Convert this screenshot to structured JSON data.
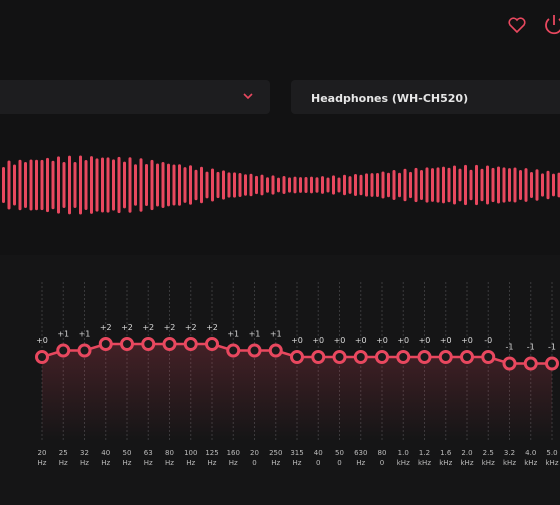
{
  "device_selector": {
    "label": "Headphones (WH-CH520)"
  },
  "equalizer": {
    "bands": [
      {
        "gain": 0,
        "gain_label": "+0",
        "freq": "20",
        "unit": "Hz"
      },
      {
        "gain": 1,
        "gain_label": "+1",
        "freq": "25",
        "unit": "Hz"
      },
      {
        "gain": 1,
        "gain_label": "+1",
        "freq": "32",
        "unit": "Hz"
      },
      {
        "gain": 2,
        "gain_label": "+2",
        "freq": "40",
        "unit": "Hz"
      },
      {
        "gain": 2,
        "gain_label": "+2",
        "freq": "50",
        "unit": "Hz"
      },
      {
        "gain": 2,
        "gain_label": "+2",
        "freq": "63",
        "unit": "Hz"
      },
      {
        "gain": 2,
        "gain_label": "+2",
        "freq": "80",
        "unit": "Hz"
      },
      {
        "gain": 2,
        "gain_label": "+2",
        "freq": "100",
        "unit": "Hz"
      },
      {
        "gain": 2,
        "gain_label": "+2",
        "freq": "125",
        "unit": "Hz"
      },
      {
        "gain": 1,
        "gain_label": "+1",
        "freq": "160",
        "unit": "Hz"
      },
      {
        "gain": 1,
        "gain_label": "+1",
        "freq": "20",
        "unit": "0"
      },
      {
        "gain": 1,
        "gain_label": "+1",
        "freq": "250",
        "unit": "Hz"
      },
      {
        "gain": 0,
        "gain_label": "+0",
        "freq": "315",
        "unit": "Hz"
      },
      {
        "gain": 0,
        "gain_label": "+0",
        "freq": "40",
        "unit": "0"
      },
      {
        "gain": 0,
        "gain_label": "+0",
        "freq": "50",
        "unit": "0"
      },
      {
        "gain": 0,
        "gain_label": "+0",
        "freq": "630",
        "unit": "Hz"
      },
      {
        "gain": 0,
        "gain_label": "+0",
        "freq": "80",
        "unit": "0"
      },
      {
        "gain": 0,
        "gain_label": "+0",
        "freq": "1.0",
        "unit": "kHz"
      },
      {
        "gain": 0,
        "gain_label": "+0",
        "freq": "1.2",
        "unit": "kHz"
      },
      {
        "gain": 0,
        "gain_label": "+0",
        "freq": "1.6",
        "unit": "kHz"
      },
      {
        "gain": 0,
        "gain_label": "+0",
        "freq": "2.0",
        "unit": "kHz"
      },
      {
        "gain": 0,
        "gain_label": "-0",
        "freq": "2.5",
        "unit": "kHz"
      },
      {
        "gain": -1,
        "gain_label": "-1",
        "freq": "3.2",
        "unit": "kHz"
      },
      {
        "gain": -1,
        "gain_label": "-1",
        "freq": "4.0",
        "unit": "kHz"
      },
      {
        "gain": -1,
        "gain_label": "-1",
        "freq": "5.0",
        "unit": "kHz"
      }
    ]
  }
}
